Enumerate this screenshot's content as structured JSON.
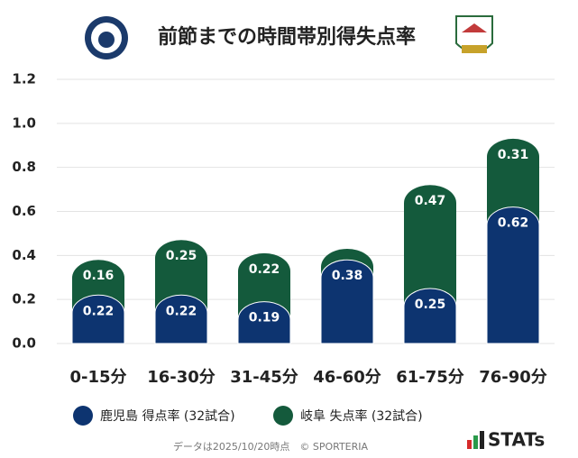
{
  "chart_data": {
    "type": "stacked_bar",
    "title": "前節までの時間帯別得失点率",
    "categories": [
      "0-15分",
      "16-30分",
      "31-45分",
      "46-60分",
      "61-75分",
      "76-90分"
    ],
    "series": [
      {
        "name": "鹿児島 得点率 (32試合)",
        "color": "#0d3470",
        "values": [
          0.22,
          0.22,
          0.19,
          0.38,
          0.25,
          0.62
        ]
      },
      {
        "name": "岐阜 失点率 (32試合)",
        "color": "#145a3c",
        "values": [
          0.16,
          0.25,
          0.22,
          0.05,
          0.47,
          0.31
        ],
        "value_labels": [
          "0.16",
          "0.25",
          "0.22",
          null,
          "0.47",
          "0.31"
        ]
      }
    ],
    "ylim": [
      0,
      1.2
    ],
    "yticks": [
      {
        "value": 0,
        "label": "0.0"
      },
      0.2,
      0.4,
      0.6,
      0.8,
      {
        "value": 1,
        "label": "1.0"
      },
      1.2
    ],
    "grid": true,
    "note": "データは2025/10/20時点　© SPORTERIA",
    "brand": "STATs"
  }
}
